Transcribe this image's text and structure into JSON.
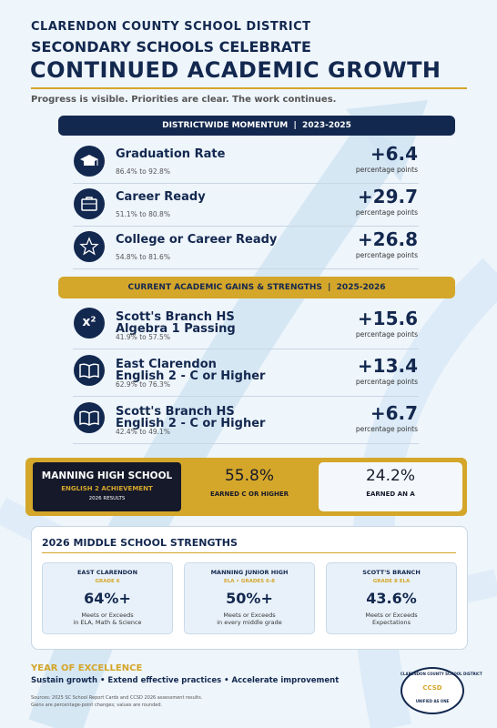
{
  "header": {
    "district": "CLARENDON COUNTY SCHOOL DISTRICT",
    "title_line1": "SECONDARY SCHOOLS CELEBRATE",
    "title_line2": "CONTINUED ACADEMIC GROWTH",
    "tagline": "Progress is visible. Priorities are clear. The work continues."
  },
  "momentum": {
    "banner": "DISTRICTWIDE MOMENTUM  |  2023-2025",
    "items": [
      {
        "title": "Graduation Rate",
        "detail": "86.4% to 92.8%",
        "gain": "+6.4",
        "unit": "percentage points"
      },
      {
        "title": "Career Ready",
        "detail": "51.1% to 80.8%",
        "gain": "+29.7",
        "unit": "percentage points"
      },
      {
        "title": "College or Career Ready",
        "detail": "54.8% to 81.6%",
        "gain": "+26.8",
        "unit": "percentage points"
      }
    ]
  },
  "gains": {
    "banner": "CURRENT ACADEMIC GAINS & STRENGTHS  |  2025-2026",
    "items": [
      {
        "icon": "x²",
        "title_line1": "Scott's Branch HS",
        "title_line2": "Algebra 1 Passing",
        "detail": "41.9% to 57.5%",
        "gain": "+15.6",
        "unit": "percentage points"
      },
      {
        "title_line1": "East Clarendon",
        "title_line2": "English 2 - C or Higher",
        "detail": "62.9% to 76.3%",
        "gain": "+13.4",
        "unit": "percentage points"
      },
      {
        "title_line1": "Scott's Branch HS",
        "title_line2": "English 2 - C or Higher",
        "detail": "42.4% to 49.1%",
        "gain": "+6.7",
        "unit": "percentage points"
      }
    ]
  },
  "manning": {
    "school": "MANNING HIGH SCHOOL",
    "subject": "ENGLISH 2 ACHIEVEMENT",
    "year": "2026 RESULTS",
    "stat1": {
      "value": "55.8%",
      "label": "EARNED C OR HIGHER"
    },
    "stat2": {
      "value": "24.2%",
      "label": "EARNED AN A"
    }
  },
  "middle": {
    "title": "2026 MIDDLE SCHOOL STRENGTHS",
    "cards": [
      {
        "school": "EAST CLARENDON",
        "grades": "GRADE 6",
        "value": "64%+",
        "desc_line1": "Meets or Exceeds",
        "desc_line2": "in ELA, Math & Science"
      },
      {
        "school": "MANNING JUNIOR HIGH",
        "grades": "ELA • GRADES 6-8",
        "value": "50%+",
        "desc_line1": "Meets or Exceeds",
        "desc_line2": "in every middle grade"
      },
      {
        "school": "SCOTT'S BRANCH",
        "grades": "GRADE 8 ELA",
        "value": "43.6%",
        "desc_line1": "Meets or Exceeds",
        "desc_line2": "Expectations"
      }
    ]
  },
  "footer": {
    "heading": "YEAR OF EXCELLENCE",
    "motto": "Sustain growth • Extend effective practices • Accelerate improvement",
    "source_line1": "Sources: 2025 SC School Report Cards and CCSD 2026 assessment results.",
    "source_line2": "Gains are percentage-point changes; values are rounded."
  },
  "logo": {
    "ring_text": "CLARENDON COUNTY SCHOOL DISTRICT",
    "initials": "CCSD",
    "motto": "UNIFIED AS ONE"
  }
}
